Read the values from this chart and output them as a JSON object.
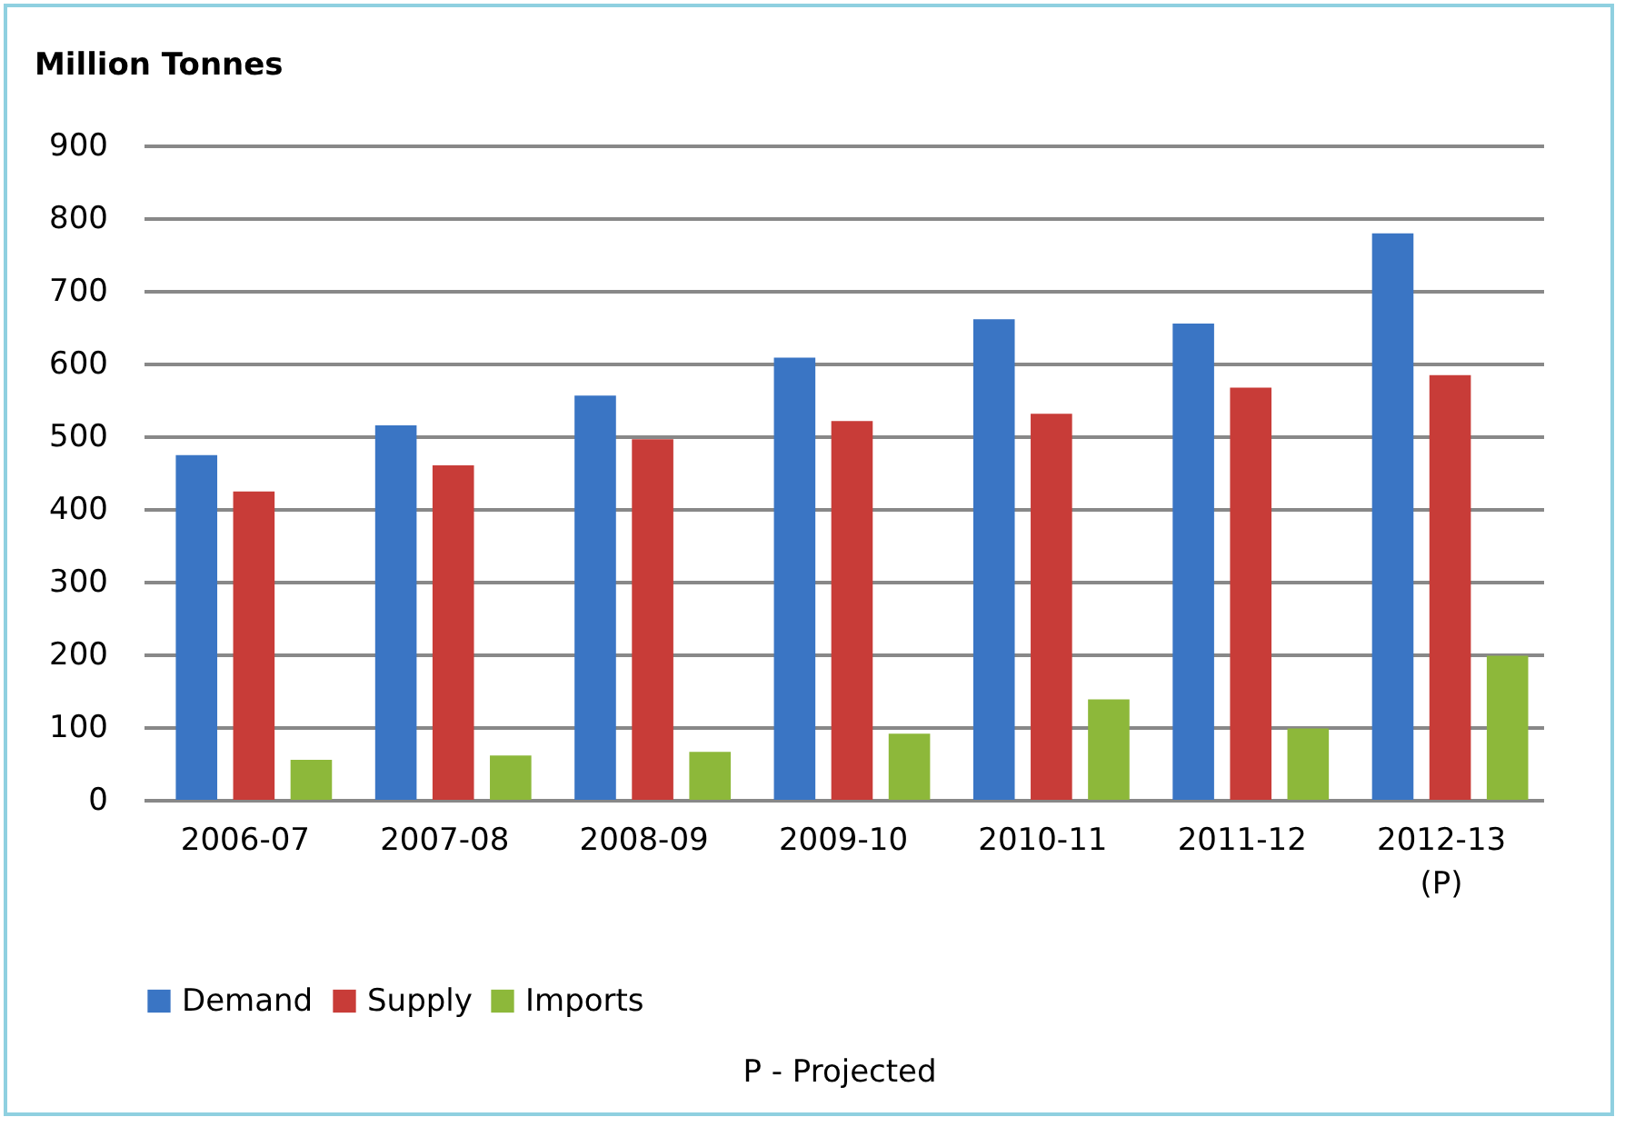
{
  "chart_data": {
    "type": "bar",
    "title": "Million Tonnes",
    "categories": [
      "2006-07",
      "2007-08",
      "2008-09",
      "2009-10",
      "2010-11",
      "2011-12",
      "2012-13\n(P)"
    ],
    "series": [
      {
        "name": "Demand",
        "color": "#3a75c4",
        "values": [
          474,
          515,
          556,
          608,
          661,
          655,
          779
        ]
      },
      {
        "name": "Supply",
        "color": "#c83c38",
        "values": [
          424,
          460,
          496,
          521,
          531,
          567,
          584
        ]
      },
      {
        "name": "Imports",
        "color": "#8db83a",
        "values": [
          55,
          61,
          66,
          91,
          138,
          98,
          198
        ]
      }
    ],
    "ylim": [
      0,
      900
    ],
    "yticks": [
      0,
      100,
      200,
      300,
      400,
      500,
      600,
      700,
      800,
      900
    ],
    "grid": "y",
    "legend": "bottom",
    "annotations": [
      "P - Projected"
    ]
  }
}
